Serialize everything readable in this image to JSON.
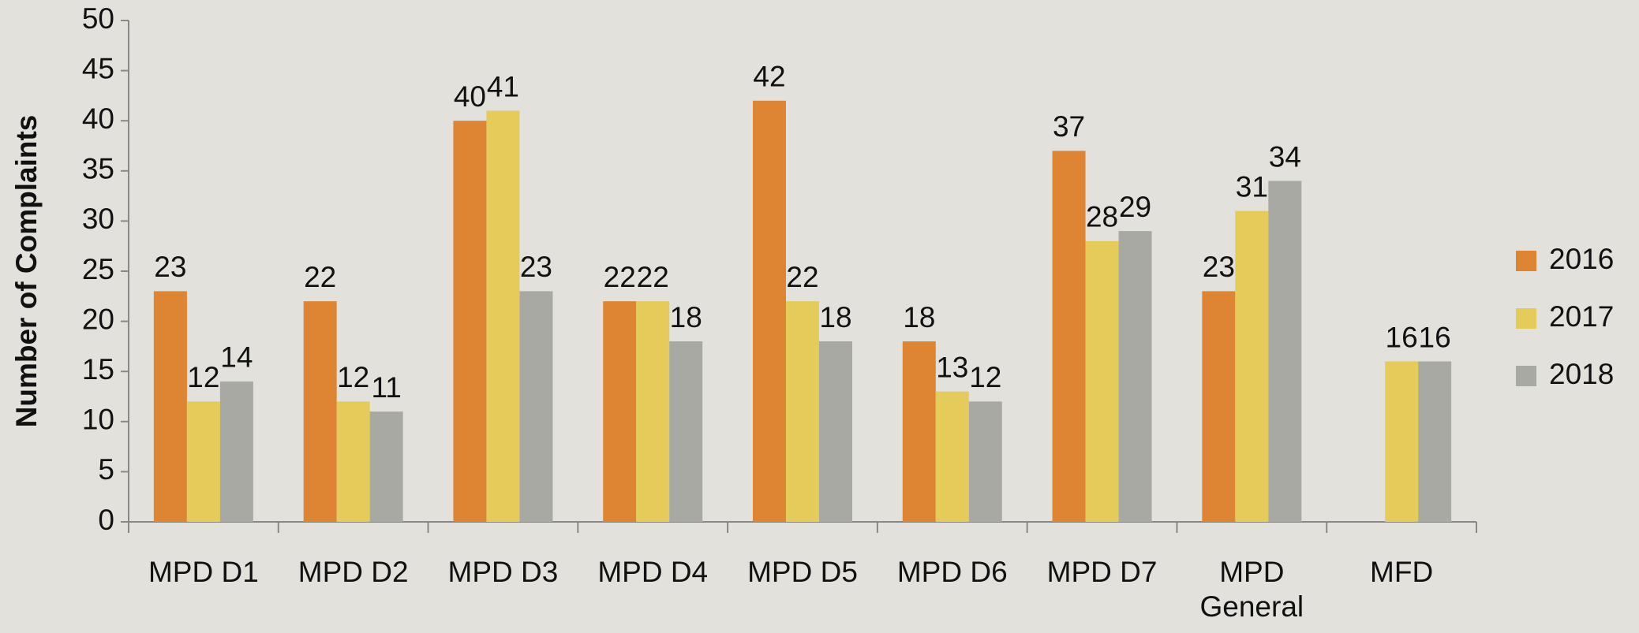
{
  "chart_data": {
    "type": "bar",
    "y_label": "Number of Complaints",
    "categories": [
      "MPD D1",
      "MPD D2",
      "MPD D3",
      "MPD D4",
      "MPD D5",
      "MPD D6",
      "MPD D7",
      "MPD General",
      "MFD"
    ],
    "series": [
      {
        "name": "2016",
        "color": "#dd8533",
        "values": [
          23,
          22,
          40,
          22,
          42,
          18,
          37,
          23,
          null
        ]
      },
      {
        "name": "2017",
        "color": "#e5cc5a",
        "values": [
          12,
          12,
          41,
          22,
          22,
          13,
          28,
          31,
          16
        ]
      },
      {
        "name": "2018",
        "color": "#a9a9a4",
        "values": [
          14,
          11,
          23,
          18,
          18,
          12,
          29,
          34,
          16
        ]
      }
    ],
    "ylim": [
      0,
      50
    ],
    "yticks": [
      0,
      5,
      10,
      15,
      20,
      25,
      30,
      35,
      40,
      45,
      50
    ],
    "legend": "right"
  }
}
